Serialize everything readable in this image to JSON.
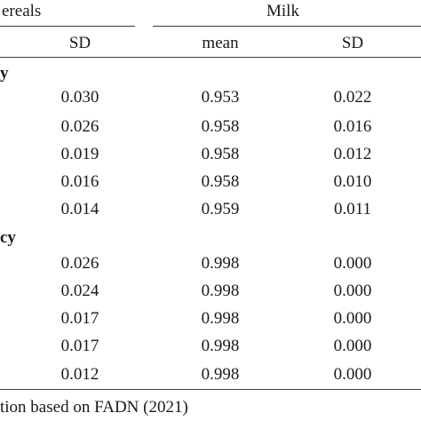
{
  "header": {
    "group_left": "ereals",
    "group_right": "Milk",
    "col_sd1": "SD",
    "col_mean": "mean",
    "col_sd2": "SD"
  },
  "sections": [
    {
      "label": "y",
      "rows": [
        {
          "sd1": "0.030",
          "mean": "0.953",
          "sd2": "0.022"
        },
        {
          "sd1": "0.026",
          "mean": "0.958",
          "sd2": "0.016"
        },
        {
          "sd1": "0.019",
          "mean": "0.958",
          "sd2": "0.012"
        },
        {
          "sd1": "0.016",
          "mean": "0.958",
          "sd2": "0.010"
        },
        {
          "sd1": "0.014",
          "mean": "0.959",
          "sd2": "0.011"
        }
      ]
    },
    {
      "label": "cy",
      "rows": [
        {
          "sd1": "0.026",
          "mean": "0.998",
          "sd2": "0.000"
        },
        {
          "sd1": "0.024",
          "mean": "0.998",
          "sd2": "0.000"
        },
        {
          "sd1": "0.017",
          "mean": "0.998",
          "sd2": "0.000"
        },
        {
          "sd1": "0.017",
          "mean": "0.998",
          "sd2": "0.000"
        },
        {
          "sd1": "0.012",
          "mean": "0.998",
          "sd2": "0.000"
        }
      ]
    }
  ],
  "footnote": "tion based on FADN (2021)"
}
